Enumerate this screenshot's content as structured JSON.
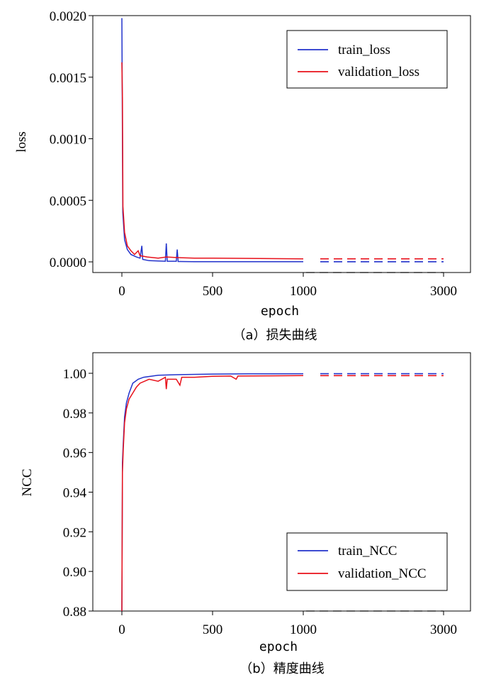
{
  "colors": {
    "train": "#2233cc",
    "validation": "#e8101a"
  },
  "chart_data": [
    {
      "type": "line",
      "caption": "（a）损失曲线",
      "xlabel": "epoch",
      "ylabel": "loss",
      "x_tick_labels": [
        "0",
        "500",
        "1000",
        "3000"
      ],
      "y_tick_labels": [
        "0.0000",
        "0.0005",
        "0.0010",
        "0.0015",
        "0.0020"
      ],
      "ylim": [
        0,
        0.002
      ],
      "x_axis": "broken between 1000 and 3000 (dashed continuation)",
      "legend_position": "top-right",
      "series": [
        {
          "name": "train_loss",
          "color_key": "train",
          "points": [
            [
              0,
              0.00198
            ],
            [
              5,
              0.0004
            ],
            [
              15,
              0.00018
            ],
            [
              30,
              0.0001
            ],
            [
              50,
              6e-05
            ],
            [
              80,
              4e-05
            ],
            [
              100,
              3e-05
            ],
            [
              110,
              0.00013
            ],
            [
              115,
              2e-05
            ],
            [
              150,
              1e-05
            ],
            [
              240,
              5e-06
            ],
            [
              245,
              0.00015
            ],
            [
              250,
              5e-06
            ],
            [
              300,
              5e-06
            ],
            [
              305,
              0.0001
            ],
            [
              310,
              3e-06
            ],
            [
              400,
              2e-06
            ],
            [
              500,
              1e-06
            ],
            [
              700,
              1e-06
            ],
            [
              1000,
              1e-06
            ],
            [
              3000,
              1e-06
            ]
          ]
        },
        {
          "name": "validation_loss",
          "color_key": "validation",
          "points": [
            [
              0,
              0.00162
            ],
            [
              3,
              0.00133
            ],
            [
              6,
              0.00045
            ],
            [
              15,
              0.00024
            ],
            [
              30,
              0.00013
            ],
            [
              50,
              9e-05
            ],
            [
              70,
              6e-05
            ],
            [
              90,
              9e-05
            ],
            [
              100,
              5e-05
            ],
            [
              140,
              4e-05
            ],
            [
              200,
              3e-05
            ],
            [
              245,
              4e-05
            ],
            [
              300,
              3.5e-05
            ],
            [
              400,
              3e-05
            ],
            [
              500,
              3e-05
            ],
            [
              700,
              2.8e-05
            ],
            [
              1000,
              2.5e-05
            ],
            [
              3000,
              2.5e-05
            ]
          ]
        }
      ]
    },
    {
      "type": "line",
      "caption": "（b）精度曲线",
      "xlabel": "epoch",
      "ylabel": "NCC",
      "x_tick_labels": [
        "0",
        "500",
        "1000",
        "3000"
      ],
      "y_tick_labels": [
        "0.88",
        "0.90",
        "0.92",
        "0.94",
        "0.96",
        "0.98",
        "1.00"
      ],
      "ylim": [
        0.88,
        1.0
      ],
      "x_axis": "broken between 1000 and 3000 (dashed continuation)",
      "legend_position": "bottom-right",
      "series": [
        {
          "name": "train_NCC",
          "color_key": "train",
          "points": [
            [
              0,
              0.88
            ],
            [
              3,
              0.955
            ],
            [
              8,
              0.965
            ],
            [
              15,
              0.978
            ],
            [
              25,
              0.985
            ],
            [
              40,
              0.99
            ],
            [
              60,
              0.995
            ],
            [
              90,
              0.997
            ],
            [
              120,
              0.998
            ],
            [
              200,
              0.999
            ],
            [
              300,
              0.9993
            ],
            [
              500,
              0.9996
            ],
            [
              700,
              0.9997
            ],
            [
              1000,
              0.9998
            ],
            [
              3000,
              0.9998
            ]
          ]
        },
        {
          "name": "validation_NCC",
          "color_key": "validation",
          "points": [
            [
              0,
              0.88
            ],
            [
              3,
              0.95
            ],
            [
              8,
              0.962
            ],
            [
              15,
              0.975
            ],
            [
              25,
              0.982
            ],
            [
              40,
              0.987
            ],
            [
              60,
              0.99
            ],
            [
              80,
              0.993
            ],
            [
              100,
              0.995
            ],
            [
              150,
              0.997
            ],
            [
              200,
              0.996
            ],
            [
              240,
              0.998
            ],
            [
              245,
              0.992
            ],
            [
              250,
              0.997
            ],
            [
              300,
              0.997
            ],
            [
              320,
              0.994
            ],
            [
              330,
              0.998
            ],
            [
              400,
              0.998
            ],
            [
              500,
              0.9985
            ],
            [
              600,
              0.9986
            ],
            [
              630,
              0.997
            ],
            [
              640,
              0.9986
            ],
            [
              800,
              0.9987
            ],
            [
              1000,
              0.9988
            ],
            [
              3000,
              0.9988
            ]
          ]
        }
      ]
    }
  ]
}
